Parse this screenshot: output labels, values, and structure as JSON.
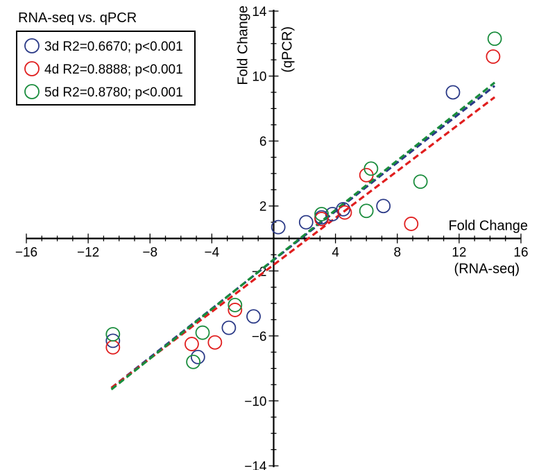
{
  "chart_data": {
    "type": "scatter",
    "title": "RNA-seq vs. qPCR",
    "xlabel_line1": "Fold Change",
    "xlabel_line2": "(RNA-seq)",
    "ylabel_line1": "Fold Change",
    "ylabel_line2": "(qPCR)",
    "xlim": [
      -16,
      16
    ],
    "ylim": [
      -14,
      14
    ],
    "xticks": [
      -16,
      -12,
      -8,
      -4,
      4,
      8,
      12,
      16
    ],
    "xtick_labels": [
      "−16",
      "−12",
      "−8",
      "−4",
      "4",
      "8",
      "12",
      "16"
    ],
    "yticks": [
      14,
      10,
      6,
      2,
      -2,
      -6,
      -10,
      -14
    ],
    "ytick_labels": [
      "14",
      "10",
      "6",
      "2",
      "−2",
      "−6",
      "−10",
      "−14"
    ],
    "grid": false,
    "legend_position": "top-left",
    "series": [
      {
        "name": "3d R2=0.6670; p<0.001",
        "color": "#2b3a87",
        "marker": "open-circle",
        "points": [
          [
            -10.4,
            -6.3
          ],
          [
            -4.9,
            -7.3
          ],
          [
            -2.9,
            -5.5
          ],
          [
            -1.3,
            -4.8
          ],
          [
            0.3,
            0.7
          ],
          [
            2.1,
            1.0
          ],
          [
            3.1,
            1.3
          ],
          [
            3.8,
            1.5
          ],
          [
            4.5,
            1.8
          ],
          [
            7.1,
            2.0
          ],
          [
            11.6,
            9.0
          ]
        ],
        "fit": [
          [
            -10.5,
            -9.2
          ],
          [
            14.3,
            9.4
          ]
        ]
      },
      {
        "name": "4d R2=0.8888; p<0.001",
        "color": "#e01e1e",
        "marker": "open-circle",
        "points": [
          [
            -10.4,
            -6.7
          ],
          [
            -5.3,
            -6.5
          ],
          [
            -3.8,
            -6.4
          ],
          [
            -2.5,
            -4.4
          ],
          [
            3.1,
            1.2
          ],
          [
            4.6,
            1.6
          ],
          [
            6.0,
            3.9
          ],
          [
            8.9,
            0.9
          ],
          [
            14.2,
            11.2
          ]
        ],
        "fit": [
          [
            -10.5,
            -9.2
          ],
          [
            14.3,
            8.7
          ]
        ]
      },
      {
        "name": "5d R2=0.8780; p<0.001",
        "color": "#198c3c",
        "marker": "open-circle",
        "points": [
          [
            -10.4,
            -5.9
          ],
          [
            -5.2,
            -7.6
          ],
          [
            -4.6,
            -5.8
          ],
          [
            -2.5,
            -4.1
          ],
          [
            3.1,
            1.5
          ],
          [
            6.0,
            1.7
          ],
          [
            6.3,
            4.3
          ],
          [
            9.5,
            3.5
          ],
          [
            14.3,
            12.3
          ]
        ],
        "fit": [
          [
            -10.5,
            -9.3
          ],
          [
            14.3,
            9.6
          ]
        ]
      }
    ]
  }
}
